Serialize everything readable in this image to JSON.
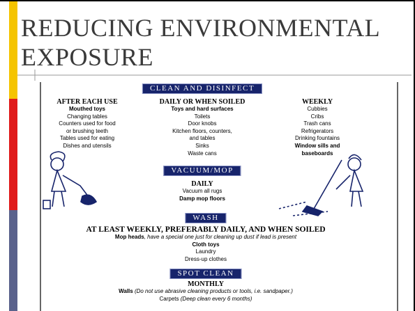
{
  "header": {
    "title_lines": [
      "REDUCING ENVIRONMENTAL",
      "EXPOSURE"
    ]
  },
  "figure": {
    "sections": [
      {
        "label": "CLEAN AND DISINFECT",
        "columns": [
          {
            "heading": "AFTER EACH USE",
            "lines": [
              [
                {
                  "text": "Mouthed toys",
                  "style": "bold"
                }
              ],
              [
                {
                  "text": "Changing tables",
                  "style": "normal"
                }
              ],
              [
                {
                  "text": "Counters used for food",
                  "style": "normal"
                }
              ],
              [
                {
                  "text": "or brushing teeth",
                  "style": "normal"
                }
              ],
              [
                {
                  "text": "Tables used for eating",
                  "style": "normal"
                }
              ],
              [
                {
                  "text": "Dishes and utensils",
                  "style": "normal"
                }
              ]
            ]
          },
          {
            "heading": "DAILY OR WHEN SOILED",
            "lines": [
              [
                {
                  "text": "Toys and hard surfaces",
                  "style": "bold"
                }
              ],
              [
                {
                  "text": "Toilets",
                  "style": "normal"
                }
              ],
              [
                {
                  "text": "Door knobs",
                  "style": "normal"
                }
              ],
              [
                {
                  "text": "Kitchen floors, counters,",
                  "style": "normal"
                }
              ],
              [
                {
                  "text": "and tables",
                  "style": "normal"
                }
              ],
              [
                {
                  "text": "Sinks",
                  "style": "normal"
                }
              ],
              [
                {
                  "text": "Waste cans",
                  "style": "normal"
                }
              ]
            ]
          },
          {
            "heading": "WEEKLY",
            "lines": [
              [
                {
                  "text": "Cubbies",
                  "style": "normal"
                }
              ],
              [
                {
                  "text": "Cribs",
                  "style": "normal"
                }
              ],
              [
                {
                  "text": "Trash cans",
                  "style": "normal"
                }
              ],
              [
                {
                  "text": "Refrigerators",
                  "style": "normal"
                }
              ],
              [
                {
                  "text": "Drinking fountains",
                  "style": "normal"
                }
              ],
              [
                {
                  "text": "Window sills and",
                  "style": "bold"
                }
              ],
              [
                {
                  "text": "baseboards",
                  "style": "bold"
                }
              ]
            ]
          }
        ]
      },
      {
        "label": "VACUUM/MOP",
        "columns": [
          {
            "heading": "DAILY",
            "lines": [
              [
                {
                  "text": "Vacuum all rugs",
                  "style": "normal"
                }
              ],
              [
                {
                  "text": "Damp mop floors",
                  "style": "bold"
                }
              ]
            ]
          }
        ]
      },
      {
        "label": "WASH",
        "columns": [
          {
            "heading": "AT LEAST WEEKLY, PREFERABLY DAILY, AND WHEN SOILED",
            "lines": [
              [
                {
                  "text": "Mop heads",
                  "style": "bold"
                },
                {
                  "text": ", have a special one just for cleaning up dust if lead is present",
                  "style": "italic"
                }
              ],
              [
                {
                  "text": "Cloth toys",
                  "style": "bold"
                }
              ],
              [
                {
                  "text": "Laundry",
                  "style": "normal"
                }
              ],
              [
                {
                  "text": "Dress-up clothes",
                  "style": "normal"
                }
              ]
            ]
          }
        ]
      },
      {
        "label": "SPOT CLEAN",
        "columns": [
          {
            "heading": "MONTHLY",
            "lines": [
              [
                {
                  "text": "Walls",
                  "style": "bold"
                },
                {
                  "text": " (Do not use abrasive cleaning products or tools, i.e. sandpaper.)",
                  "style": "italic"
                }
              ],
              [
                {
                  "text": "Carpets ",
                  "style": "normal"
                },
                {
                  "text": "(Deep clean every 6 months)",
                  "style": "italic"
                }
              ]
            ]
          }
        ]
      }
    ]
  }
}
